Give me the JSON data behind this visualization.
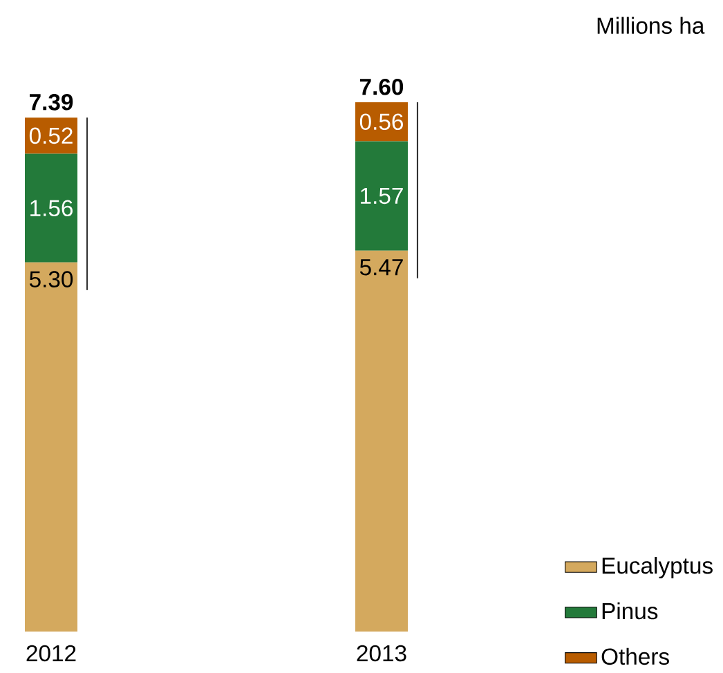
{
  "chart_data": {
    "type": "bar",
    "stacked": true,
    "legend": "bottom right",
    "categories": [
      "2012",
      "2013"
    ],
    "series": [
      {
        "name": "Eucalyptus",
        "color": "#d4a95e",
        "values": [
          5.3,
          5.47
        ],
        "value_labels": [
          "5.30",
          "5.47"
        ]
      },
      {
        "name": "Pinus",
        "color": "#237a3a",
        "values": [
          1.56,
          1.57
        ],
        "value_labels": [
          "1.56",
          "1.57"
        ]
      },
      {
        "name": "Others",
        "color": "#b85c00",
        "values": [
          0.52,
          0.56
        ],
        "value_labels": [
          "0.52",
          "0.56"
        ]
      }
    ],
    "totals": [
      "7.39",
      "7.60"
    ],
    "annotations": [
      "Millions ha"
    ]
  }
}
